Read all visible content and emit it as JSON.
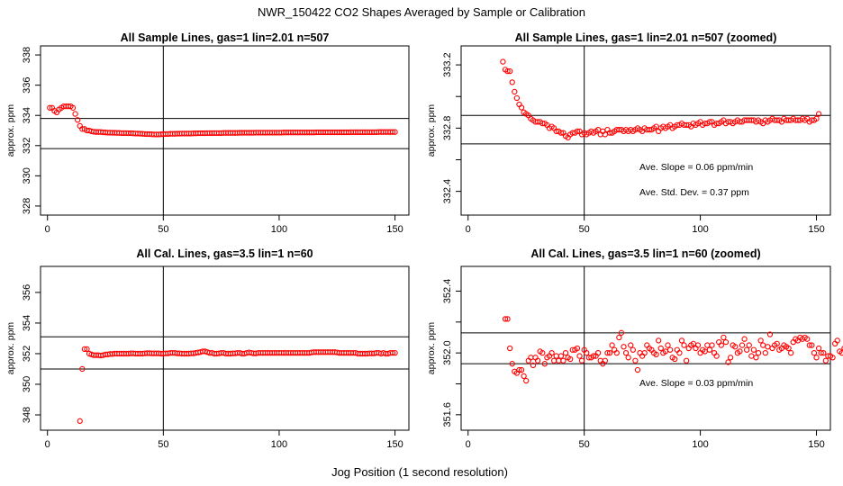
{
  "figure": {
    "title": "NWR_150422  CO2 Shapes Averaged by Sample or Calibration",
    "xlabel": "Jog Position (1 second resolution)"
  },
  "colors": {
    "points": "#ff0000",
    "axes": "#000000",
    "background": "#ffffff"
  },
  "chart_data": [
    {
      "type": "scatter",
      "title": "All Sample Lines, gas=1 lin=2.01 n=507",
      "ylabel": "approx. ppm",
      "xlim": [
        -3,
        156
      ],
      "ylim": [
        327.4,
        338.6
      ],
      "xticks": [
        0,
        50,
        100,
        150
      ],
      "yticks": [
        328,
        330,
        332,
        334,
        336,
        338
      ],
      "vline": 50,
      "hlines": [
        333.8,
        331.8
      ],
      "annotations": [],
      "series": [
        {
          "x_start": 1,
          "y": [
            334.5,
            334.5,
            334.3,
            334.2,
            334.4,
            334.5,
            334.6,
            334.6,
            334.6,
            334.6,
            334.5,
            334.1,
            333.7,
            333.3,
            333.1,
            333.1,
            333.0,
            333.0,
            332.95,
            332.92,
            332.9,
            332.9,
            332.9,
            332.88,
            332.87,
            332.86,
            332.86,
            332.85,
            332.85,
            332.84,
            332.84,
            332.83,
            332.83,
            332.83,
            332.82,
            332.82,
            332.81,
            332.8,
            332.8,
            332.79,
            332.78,
            332.77,
            332.76,
            332.76,
            332.75,
            332.74,
            332.74,
            332.74,
            332.75,
            332.76,
            332.77,
            332.77,
            332.78,
            332.78,
            332.78,
            332.79,
            332.79,
            332.8,
            332.8,
            332.8,
            332.8,
            332.8,
            332.81,
            332.81,
            332.82,
            332.82,
            332.82,
            332.82,
            332.83,
            332.83,
            332.83,
            332.83,
            332.83,
            332.83,
            332.83,
            332.84,
            332.84,
            332.84,
            332.84,
            332.84,
            332.84,
            332.84,
            332.85,
            332.85,
            332.85,
            332.85,
            332.85,
            332.85,
            332.85,
            332.86,
            332.86,
            332.86,
            332.86,
            332.86,
            332.86,
            332.86,
            332.86,
            332.86,
            332.86,
            332.86,
            332.86,
            332.87,
            332.87,
            332.87,
            332.87,
            332.87,
            332.87,
            332.87,
            332.87,
            332.87,
            332.87,
            332.87,
            332.87,
            332.87,
            332.87,
            332.88,
            332.88,
            332.88,
            332.88,
            332.88,
            332.88,
            332.88,
            332.88,
            332.88,
            332.88,
            332.88,
            332.88,
            332.88,
            332.88,
            332.88,
            332.89,
            332.89,
            332.89,
            332.89,
            332.89,
            332.89,
            332.89,
            332.89,
            332.89,
            332.89,
            332.89,
            332.89,
            332.9,
            332.9,
            332.9,
            332.9,
            332.9,
            332.9,
            332.9,
            332.9
          ]
        }
      ]
    },
    {
      "type": "scatter",
      "title": "All Sample Lines, gas=1 lin=2.01 n=507 (zoomed)",
      "ylabel": "approx. ppm",
      "xlim": [
        -3,
        156
      ],
      "ylim": [
        332.25,
        333.32
      ],
      "xticks": [
        0,
        50,
        100,
        150
      ],
      "yticks": [
        332.4,
        332.6,
        332.8,
        333.0,
        333.2
      ],
      "ytick_labels": [
        "332.4",
        "",
        "332.8",
        "",
        "333.2"
      ],
      "vline": 50,
      "hlines": [
        332.88,
        332.7
      ],
      "annotations": [
        "Ave. Slope =  0.06  ppm/min",
        "Ave. Std. Dev. =  0.37  ppm"
      ],
      "series": [
        {
          "x_start": 15,
          "y": [
            333.22,
            333.17,
            333.16,
            333.16,
            333.09,
            333.03,
            332.99,
            332.95,
            332.93,
            332.9,
            332.89,
            332.88,
            332.86,
            332.85,
            332.84,
            332.84,
            332.84,
            332.83,
            332.83,
            332.82,
            332.8,
            332.81,
            332.8,
            332.78,
            332.78,
            332.77,
            332.77,
            332.75,
            332.74,
            332.76,
            332.77,
            332.77,
            332.78,
            332.78,
            332.76,
            332.77,
            332.76,
            332.77,
            332.78,
            332.77,
            332.78,
            332.79,
            332.76,
            332.78,
            332.76,
            332.79,
            332.77,
            332.77,
            332.78,
            332.79,
            332.79,
            332.79,
            332.78,
            332.79,
            332.78,
            332.79,
            332.78,
            332.79,
            332.8,
            332.79,
            332.78,
            332.8,
            332.79,
            332.79,
            332.79,
            332.8,
            332.81,
            332.78,
            332.8,
            332.81,
            332.8,
            332.81,
            332.82,
            332.8,
            332.81,
            332.82,
            332.82,
            332.83,
            332.82,
            332.82,
            332.82,
            332.81,
            332.83,
            332.82,
            332.83,
            332.84,
            332.82,
            332.83,
            332.83,
            332.84,
            332.84,
            332.82,
            332.83,
            332.83,
            332.84,
            332.85,
            332.83,
            332.84,
            332.84,
            332.83,
            332.84,
            332.85,
            332.84,
            332.84,
            332.85,
            332.85,
            332.85,
            332.85,
            332.85,
            332.84,
            332.85,
            332.84,
            332.83,
            332.85,
            332.84,
            332.85,
            332.86,
            332.85,
            332.85,
            332.85,
            332.84,
            332.86,
            332.85,
            332.85,
            332.85,
            332.86,
            332.85,
            332.85,
            332.85,
            332.86,
            332.85,
            332.86,
            332.84,
            332.85,
            332.85,
            332.86,
            332.89
          ]
        }
      ]
    },
    {
      "type": "scatter",
      "title": "All Cal. Lines, gas=3.5 lin=1 n=60",
      "ylabel": "approx. ppm",
      "xlim": [
        -3,
        156
      ],
      "ylim": [
        347.0,
        357.7
      ],
      "xticks": [
        0,
        50,
        100,
        150
      ],
      "yticks": [
        348,
        350,
        352,
        354,
        356
      ],
      "vline": 50,
      "hlines": [
        353.1,
        351.0
      ],
      "annotations": [],
      "series": [
        {
          "x_start": 14,
          "y": [
            347.6,
            351.0,
            352.3,
            352.3,
            352.0,
            351.95,
            351.9,
            351.9,
            351.9,
            351.88,
            351.9,
            351.95,
            351.95,
            351.98,
            351.98,
            352.0,
            352.0,
            352.0,
            352.0,
            352.0,
            352.0,
            352.0,
            352.02,
            352.02,
            352.0,
            352.0,
            352.0,
            352.0,
            352.02,
            352.03,
            352.03,
            352.02,
            352.02,
            352.02,
            352.02,
            352.0,
            352.0,
            352.02,
            352.02,
            352.05,
            352.05,
            352.05,
            352.02,
            352.02,
            352.0,
            352.0,
            352.0,
            352.0,
            352.02,
            352.02,
            352.05,
            352.08,
            352.1,
            352.15,
            352.15,
            352.1,
            352.05,
            352.05,
            352.0,
            352.0,
            352.02,
            352.05,
            352.05,
            352.0,
            352.0,
            352.0,
            352.02,
            352.02,
            352.05,
            352.05,
            352.0,
            352.0,
            352.05,
            352.08,
            352.05,
            352.02,
            352.02,
            352.05,
            352.05,
            352.05,
            352.05,
            352.05,
            352.05,
            352.05,
            352.05,
            352.05,
            352.05,
            352.05,
            352.05,
            352.05,
            352.05,
            352.05,
            352.05,
            352.05,
            352.05,
            352.05,
            352.05,
            352.05,
            352.05,
            352.05,
            352.08,
            352.1,
            352.1,
            352.1,
            352.1,
            352.1,
            352.1,
            352.1,
            352.1,
            352.1,
            352.1,
            352.08,
            352.05,
            352.05,
            352.05,
            352.05,
            352.05,
            352.05,
            352.05,
            352.05,
            352.0,
            352.0,
            352.0,
            352.0,
            352.0,
            352.02,
            352.02,
            352.02,
            352.05,
            352.05,
            352.0,
            352.05,
            352.0,
            352.0,
            352.05,
            352.05,
            352.05
          ]
        }
      ]
    },
    {
      "type": "scatter",
      "title": "All Cal. Lines, gas=3.5 lin=1 n=60 (zoomed)",
      "ylabel": "approx. ppm",
      "xlim": [
        -3,
        156
      ],
      "ylim": [
        351.5,
        352.56
      ],
      "xticks": [
        0,
        50,
        100,
        150
      ],
      "yticks": [
        351.6,
        351.8,
        352.0,
        352.2,
        352.4
      ],
      "ytick_labels": [
        "351.6",
        "",
        "352.0",
        "",
        "352.4"
      ],
      "vline": 50,
      "hlines": [
        352.13,
        351.93
      ],
      "annotations": [
        "Ave. Slope =  0.03  ppm/min"
      ],
      "series": [
        {
          "x_start": 16,
          "y": [
            352.22,
            352.22,
            352.03,
            351.93,
            351.88,
            351.87,
            351.89,
            351.89,
            351.85,
            351.82,
            351.95,
            351.97,
            351.92,
            351.97,
            351.95,
            352.01,
            352.0,
            351.93,
            351.97,
            351.98,
            352.0,
            351.95,
            351.98,
            351.95,
            351.98,
            351.95,
            352.0,
            351.97,
            351.96,
            352.02,
            352.02,
            352.03,
            351.98,
            351.95,
            352.02,
            352.0,
            351.97,
            351.97,
            351.98,
            351.98,
            352.0,
            351.95,
            351.93,
            351.95,
            352.0,
            352.0,
            352.05,
            352.02,
            352.0,
            352.1,
            352.13,
            352.04,
            352.0,
            351.97,
            352.05,
            352.02,
            351.95,
            351.89,
            352.0,
            351.98,
            352.0,
            352.05,
            352.03,
            352.02,
            352.0,
            351.99,
            352.08,
            352.03,
            352.0,
            352.01,
            352.05,
            352.02,
            351.97,
            351.96,
            352.02,
            352.0,
            352.08,
            352.05,
            351.95,
            352.03,
            352.05,
            352.06,
            352.03,
            352.05,
            352.0,
            352.02,
            352.01,
            352.05,
            352.02,
            352.05,
            352.0,
            351.98,
            352.07,
            352.05,
            352.1,
            352.07,
            351.94,
            351.97,
            352.05,
            352.04,
            352.0,
            352.01,
            352.05,
            352.09,
            352.02,
            352.05,
            351.98,
            352.02,
            351.97,
            352.0,
            352.08,
            352.05,
            352.0,
            352.04,
            352.12,
            352.03,
            352.05,
            352.06,
            352.02,
            352.03,
            352.05,
            352.04,
            352.03,
            352.0,
            352.07,
            352.09,
            352.08,
            352.1,
            352.09,
            352.1,
            352.09,
            352.05,
            352.05,
            352.0,
            351.97,
            352.03,
            352.0,
            352.0,
            351.95,
            351.98,
            351.98,
            351.97,
            352.06,
            352.08,
            352.01,
            352.0,
            352.03,
            352.05
          ]
        }
      ]
    }
  ]
}
